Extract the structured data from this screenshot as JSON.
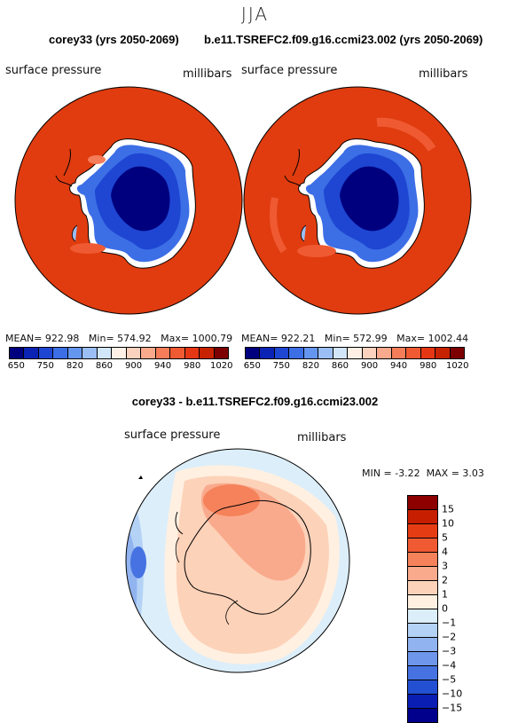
{
  "season": "JJA",
  "panel_left": {
    "title": "corey33 (yrs 2050-2069)",
    "variable": "surface pressure",
    "units": "millibars",
    "mean_label": "MEAN=",
    "mean": "922.98",
    "min_label": "Min=",
    "min": "574.92",
    "max_label": "Max=",
    "max": "1000.79"
  },
  "panel_right": {
    "title": "b.e11.TSREFC2.f09.g16.ccmi23.002 (yrs 2050-2069)",
    "variable": "surface pressure",
    "units": "millibars",
    "mean_label": "MEAN=",
    "mean": "922.21",
    "min_label": "Min=",
    "min": "572.99",
    "max_label": "Max=",
    "max": "1002.44"
  },
  "colorbar_top": {
    "ticks": [
      "650",
      "750",
      "820",
      "860",
      "900",
      "940",
      "980",
      "1020"
    ],
    "colors": [
      "#00007f",
      "#0a23b4",
      "#1e46d2",
      "#3c6ee6",
      "#6496f0",
      "#9bbef5",
      "#d2e6fa",
      "#fff0e6",
      "#fad2be",
      "#faaa8c",
      "#f57d5a",
      "#f05a32",
      "#e63714",
      "#c82300",
      "#7d0000"
    ]
  },
  "panel_diff": {
    "title": "corey33 - b.e11.TSREFC2.f09.g16.ccmi23.002",
    "variable": "surface pressure",
    "units": "millibars",
    "min_label": "MIN =",
    "min": "-3.22",
    "max_label": "MAX =",
    "max": "3.03"
  },
  "colorbar_diff": {
    "levels": [
      "15",
      "10",
      "5",
      "4",
      "3",
      "2",
      "1",
      "0",
      "−1",
      "−2",
      "−3",
      "−4",
      "−5",
      "−10",
      "−15"
    ],
    "colors": [
      "#8c0000",
      "#c81e00",
      "#e63c14",
      "#f05a32",
      "#f5825a",
      "#faaa8c",
      "#fcd2b9",
      "#fff0e1",
      "#dceefa",
      "#b4d2f5",
      "#91b4f0",
      "#6e96eb",
      "#4673e1",
      "#2350d2",
      "#0a1eb4",
      "#00008c"
    ]
  }
}
